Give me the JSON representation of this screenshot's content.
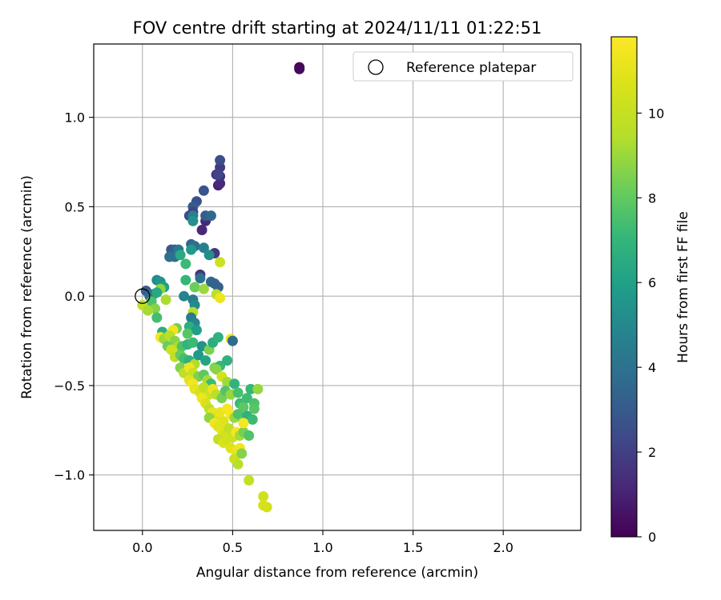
{
  "chart_data": {
    "type": "scatter",
    "title": "FOV centre drift starting at 2024/11/11 01:22:51",
    "xlabel": "Angular distance from reference (arcmin)",
    "ylabel": "Rotation from reference (arcmin)",
    "xlim": [
      -0.27,
      2.43
    ],
    "ylim": [
      -1.31,
      1.41
    ],
    "xticks": [
      0.0,
      0.5,
      1.0,
      1.5,
      2.0
    ],
    "xtick_labels": [
      "0.0",
      "0.5",
      "1.0",
      "1.5",
      "2.0"
    ],
    "yticks": [
      -1.0,
      -0.5,
      0.0,
      0.5,
      1.0
    ],
    "ytick_labels": [
      "−1.0",
      "−0.5",
      "0.0",
      "0.5",
      "1.0"
    ],
    "grid": true,
    "legend": {
      "position": "top-right",
      "entries": [
        "Reference platepar"
      ]
    },
    "reference_point": {
      "x": 0.0,
      "y": 0.0
    },
    "colorbar": {
      "label": "Hours from first FF file",
      "range": [
        0,
        11.8
      ],
      "ticks": [
        0,
        2,
        4,
        6,
        8,
        10
      ],
      "tick_labels": [
        "0",
        "2",
        "4",
        "6",
        "8",
        "10"
      ],
      "colormap": "viridis"
    },
    "points": [
      [
        0.87,
        1.28,
        0.1
      ],
      [
        0.87,
        1.27,
        0.2
      ],
      [
        0.42,
        0.62,
        1.0
      ],
      [
        0.43,
        0.63,
        1.2
      ],
      [
        0.41,
        0.68,
        1.5
      ],
      [
        0.43,
        0.72,
        1.8
      ],
      [
        0.43,
        0.67,
        1.4
      ],
      [
        0.43,
        0.76,
        2.5
      ],
      [
        0.42,
        0.68,
        2.2
      ],
      [
        0.35,
        0.42,
        1.3
      ],
      [
        0.33,
        0.37,
        1.2
      ],
      [
        0.32,
        0.12,
        1.6
      ],
      [
        0.4,
        0.24,
        1.7
      ],
      [
        0.34,
        0.59,
        2.8
      ],
      [
        0.3,
        0.53,
        2.6
      ],
      [
        0.28,
        0.5,
        3.0
      ],
      [
        0.26,
        0.45,
        2.4
      ],
      [
        0.28,
        0.47,
        2.1
      ],
      [
        0.35,
        0.45,
        3.1
      ],
      [
        0.38,
        0.45,
        3.6
      ],
      [
        0.28,
        0.45,
        4.6
      ],
      [
        0.28,
        0.42,
        5.4
      ],
      [
        0.16,
        0.26,
        2.9
      ],
      [
        0.18,
        0.26,
        3.2
      ],
      [
        0.15,
        0.22,
        3.8
      ],
      [
        0.18,
        0.22,
        3.9
      ],
      [
        0.2,
        0.26,
        4.2
      ],
      [
        0.27,
        0.29,
        3.5
      ],
      [
        0.29,
        0.28,
        3.9
      ],
      [
        0.34,
        0.27,
        4.6
      ],
      [
        0.27,
        0.26,
        5.7
      ],
      [
        0.37,
        0.23,
        5.2
      ],
      [
        0.21,
        0.23,
        6.4
      ],
      [
        0.24,
        0.18,
        7.2
      ],
      [
        0.43,
        0.19,
        10.2
      ],
      [
        0.32,
        0.1,
        4.0
      ],
      [
        0.38,
        0.08,
        3.6
      ],
      [
        0.4,
        0.07,
        3.4
      ],
      [
        0.42,
        0.05,
        3.3
      ],
      [
        0.24,
        0.09,
        7.0
      ],
      [
        0.29,
        0.05,
        8.2
      ],
      [
        0.34,
        0.04,
        9.0
      ],
      [
        0.41,
        0.01,
        9.6
      ],
      [
        0.43,
        -0.01,
        11.3
      ],
      [
        0.23,
        0.0,
        4.8
      ],
      [
        0.28,
        -0.02,
        4.4
      ],
      [
        0.29,
        -0.05,
        5.1
      ],
      [
        0.28,
        -0.09,
        9.5
      ],
      [
        0.02,
        0.03,
        3.1
      ],
      [
        0.04,
        0.0,
        3.7
      ],
      [
        0.06,
        0.01,
        4.1
      ],
      [
        0.08,
        0.09,
        5.0
      ],
      [
        0.1,
        0.08,
        5.5
      ],
      [
        0.12,
        0.05,
        6.0
      ],
      [
        0.1,
        0.04,
        8.8
      ],
      [
        0.08,
        0.02,
        6.4
      ],
      [
        0.13,
        -0.02,
        9.3
      ],
      [
        0.05,
        -0.03,
        7.6
      ],
      [
        0.07,
        -0.07,
        8.6
      ],
      [
        0.0,
        -0.05,
        9.8
      ],
      [
        0.03,
        -0.08,
        9.2
      ],
      [
        0.08,
        -0.12,
        7.4
      ],
      [
        0.27,
        -0.12,
        4.4
      ],
      [
        0.29,
        -0.15,
        4.8
      ],
      [
        0.26,
        -0.17,
        6.6
      ],
      [
        0.3,
        -0.19,
        5.9
      ],
      [
        0.25,
        -0.21,
        7.8
      ],
      [
        0.19,
        -0.18,
        8.3
      ],
      [
        0.17,
        -0.19,
        11.4
      ],
      [
        0.11,
        -0.2,
        6.6
      ],
      [
        0.1,
        -0.23,
        11.5
      ],
      [
        0.12,
        -0.24,
        9.0
      ],
      [
        0.15,
        -0.22,
        9.6
      ],
      [
        0.18,
        -0.25,
        8.7
      ],
      [
        0.2,
        -0.28,
        9.3
      ],
      [
        0.22,
        -0.28,
        7.6
      ],
      [
        0.25,
        -0.27,
        6.9
      ],
      [
        0.28,
        -0.26,
        7.2
      ],
      [
        0.33,
        -0.28,
        5.4
      ],
      [
        0.37,
        -0.3,
        8.5
      ],
      [
        0.39,
        -0.26,
        6.6
      ],
      [
        0.42,
        -0.23,
        6.8
      ],
      [
        0.49,
        -0.24,
        11.2
      ],
      [
        0.5,
        -0.25,
        3.7
      ],
      [
        0.14,
        -0.28,
        8.2
      ],
      [
        0.16,
        -0.3,
        10.3
      ],
      [
        0.18,
        -0.34,
        9.8
      ],
      [
        0.21,
        -0.33,
        8.1
      ],
      [
        0.23,
        -0.35,
        7.4
      ],
      [
        0.26,
        -0.36,
        6.8
      ],
      [
        0.29,
        -0.38,
        9.4
      ],
      [
        0.31,
        -0.33,
        5.7
      ],
      [
        0.35,
        -0.36,
        6.2
      ],
      [
        0.4,
        -0.4,
        8.6
      ],
      [
        0.43,
        -0.39,
        7.1
      ],
      [
        0.47,
        -0.36,
        6.8
      ],
      [
        0.21,
        -0.4,
        8.6
      ],
      [
        0.23,
        -0.43,
        9.7
      ],
      [
        0.26,
        -0.4,
        11.4
      ],
      [
        0.28,
        -0.43,
        10.1
      ],
      [
        0.31,
        -0.45,
        8.5
      ],
      [
        0.34,
        -0.44,
        7.9
      ],
      [
        0.36,
        -0.47,
        9.2
      ],
      [
        0.38,
        -0.49,
        7.2
      ],
      [
        0.41,
        -0.41,
        8.7
      ],
      [
        0.44,
        -0.45,
        10.4
      ],
      [
        0.47,
        -0.48,
        9.1
      ],
      [
        0.26,
        -0.47,
        10.9
      ],
      [
        0.28,
        -0.49,
        11.5
      ],
      [
        0.29,
        -0.52,
        11.0
      ],
      [
        0.32,
        -0.54,
        10.5
      ],
      [
        0.34,
        -0.51,
        9.7
      ],
      [
        0.37,
        -0.55,
        10.2
      ],
      [
        0.39,
        -0.52,
        11.3
      ],
      [
        0.41,
        -0.55,
        9.6
      ],
      [
        0.44,
        -0.57,
        8.4
      ],
      [
        0.46,
        -0.53,
        7.7
      ],
      [
        0.49,
        -0.55,
        8.9
      ],
      [
        0.51,
        -0.49,
        6.9
      ],
      [
        0.53,
        -0.54,
        7.5
      ],
      [
        0.54,
        -0.6,
        7.2
      ],
      [
        0.56,
        -0.62,
        7.9
      ],
      [
        0.58,
        -0.57,
        7.3
      ],
      [
        0.6,
        -0.52,
        7.1
      ],
      [
        0.62,
        -0.6,
        7.6
      ],
      [
        0.62,
        -0.63,
        7.8
      ],
      [
        0.64,
        -0.52,
        8.9
      ],
      [
        0.33,
        -0.57,
        11.3
      ],
      [
        0.35,
        -0.6,
        10.7
      ],
      [
        0.37,
        -0.63,
        9.8
      ],
      [
        0.39,
        -0.65,
        11.1
      ],
      [
        0.41,
        -0.68,
        10.6
      ],
      [
        0.43,
        -0.65,
        11.2
      ],
      [
        0.45,
        -0.7,
        10.8
      ],
      [
        0.47,
        -0.63,
        11.5
      ],
      [
        0.49,
        -0.66,
        11.6
      ],
      [
        0.51,
        -0.68,
        9.0
      ],
      [
        0.53,
        -0.66,
        7.6
      ],
      [
        0.56,
        -0.7,
        8.1
      ],
      [
        0.58,
        -0.67,
        6.8
      ],
      [
        0.61,
        -0.69,
        7.2
      ],
      [
        0.37,
        -0.68,
        8.8
      ],
      [
        0.4,
        -0.71,
        11.4
      ],
      [
        0.42,
        -0.73,
        10.9
      ],
      [
        0.44,
        -0.75,
        11.0
      ],
      [
        0.46,
        -0.77,
        10.5
      ],
      [
        0.48,
        -0.74,
        9.8
      ],
      [
        0.5,
        -0.79,
        10.2
      ],
      [
        0.52,
        -0.76,
        11.5
      ],
      [
        0.54,
        -0.78,
        9.2
      ],
      [
        0.56,
        -0.76,
        8.4
      ],
      [
        0.59,
        -0.78,
        7.7
      ],
      [
        0.56,
        -0.71,
        11.6
      ],
      [
        0.42,
        -0.8,
        9.9
      ],
      [
        0.45,
        -0.82,
        10.7
      ],
      [
        0.47,
        -0.8,
        10.4
      ],
      [
        0.49,
        -0.85,
        10.8
      ],
      [
        0.52,
        -0.87,
        11.2
      ],
      [
        0.54,
        -0.85,
        11.4
      ],
      [
        0.51,
        -0.91,
        10.1
      ],
      [
        0.53,
        -0.94,
        9.6
      ],
      [
        0.55,
        -0.88,
        8.6
      ],
      [
        0.59,
        -1.03,
        9.9
      ],
      [
        0.67,
        -1.12,
        10.3
      ],
      [
        0.67,
        -1.17,
        10.6
      ],
      [
        0.69,
        -1.18,
        10.4
      ]
    ]
  }
}
